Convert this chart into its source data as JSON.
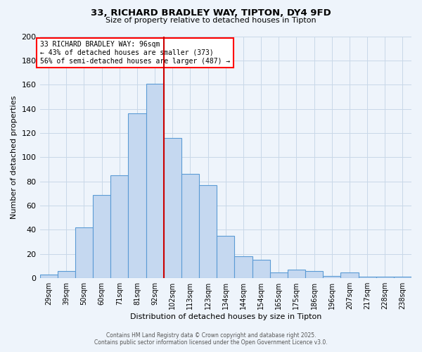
{
  "title": "33, RICHARD BRADLEY WAY, TIPTON, DY4 9FD",
  "subtitle": "Size of property relative to detached houses in Tipton",
  "xlabel": "Distribution of detached houses by size in Tipton",
  "ylabel": "Number of detached properties",
  "bar_labels": [
    "29sqm",
    "39sqm",
    "50sqm",
    "60sqm",
    "71sqm",
    "81sqm",
    "92sqm",
    "102sqm",
    "113sqm",
    "123sqm",
    "134sqm",
    "144sqm",
    "154sqm",
    "165sqm",
    "175sqm",
    "186sqm",
    "196sqm",
    "207sqm",
    "217sqm",
    "228sqm",
    "238sqm"
  ],
  "bar_values": [
    3,
    6,
    42,
    69,
    85,
    136,
    161,
    116,
    86,
    77,
    35,
    18,
    15,
    5,
    7,
    6,
    2,
    5,
    1,
    1,
    1
  ],
  "bar_color": "#c5d8f0",
  "bar_edge_color": "#5b9bd5",
  "ylim": [
    0,
    200
  ],
  "yticks": [
    0,
    20,
    40,
    60,
    80,
    100,
    120,
    140,
    160,
    180,
    200
  ],
  "vline_index": 6,
  "vline_color": "#cc0000",
  "annotation_line1": "33 RICHARD BRADLEY WAY: 96sqm",
  "annotation_line2": "← 43% of detached houses are smaller (373)",
  "annotation_line3": "56% of semi-detached houses are larger (487) →",
  "footer1": "Contains HM Land Registry data © Crown copyright and database right 2025.",
  "footer2": "Contains public sector information licensed under the Open Government Licence v3.0.",
  "bg_color": "#eef4fb",
  "plot_bg_color": "#eef4fb",
  "grid_color": "#c8d8e8"
}
